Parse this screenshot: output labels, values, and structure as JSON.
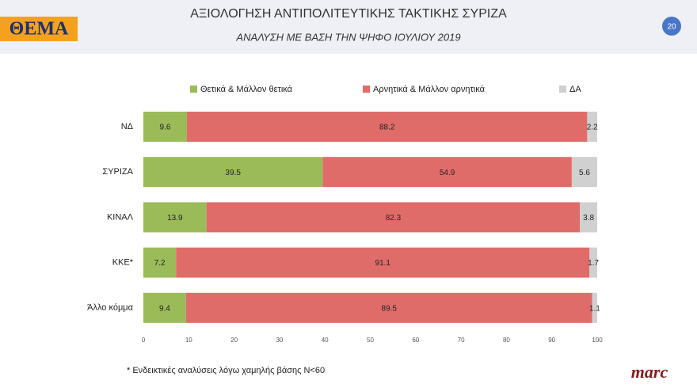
{
  "chart_data": {
    "type": "stacked_barh",
    "title": "ΑΞΙΟΛΟΓΗΣΗ ΑΝΤΙΠΟΛΙΤΕΥΤΙΚΗΣ ΤΑΚΤΙΚΗΣ ΣΥΡΙΖΑ",
    "subtitle": "ΑΝΑΛΥΣΗ ΜΕ ΒΑΣΗ ΤΗΝ ΨΗΦΟ ΙΟΥΛΙΟΥ 2019",
    "categories": [
      "ΝΔ",
      "ΣΥΡΙΖΑ",
      "ΚΙΝΑΛ",
      "ΚΚΕ*",
      "Άλλο κόμμα"
    ],
    "series": [
      {
        "name": "Θετικά & Μάλλον θετικά",
        "color": "#9bbb59",
        "values": [
          9.6,
          39.5,
          13.9,
          7.2,
          9.4
        ]
      },
      {
        "name": "Αρνητικά & Μάλλον αρνητικά",
        "color": "#e06c6a",
        "values": [
          88.2,
          54.9,
          82.3,
          91.1,
          89.5
        ]
      },
      {
        "name": "ΔΑ",
        "color": "#d0d0d0",
        "values": [
          2.2,
          5.6,
          3.8,
          1.7,
          1.1
        ]
      }
    ],
    "xlim": [
      0,
      100
    ],
    "xticks": [
      0,
      10,
      20,
      30,
      40,
      50,
      60,
      70,
      80,
      90,
      100
    ],
    "legend": "top"
  },
  "slide": {
    "logo": "ΘΕΜΑ",
    "page_number": "20",
    "footnote": "* Ενδεικτικές αναλύσεις λόγω χαμηλής βάσης Ν<60",
    "brand": "marc"
  }
}
